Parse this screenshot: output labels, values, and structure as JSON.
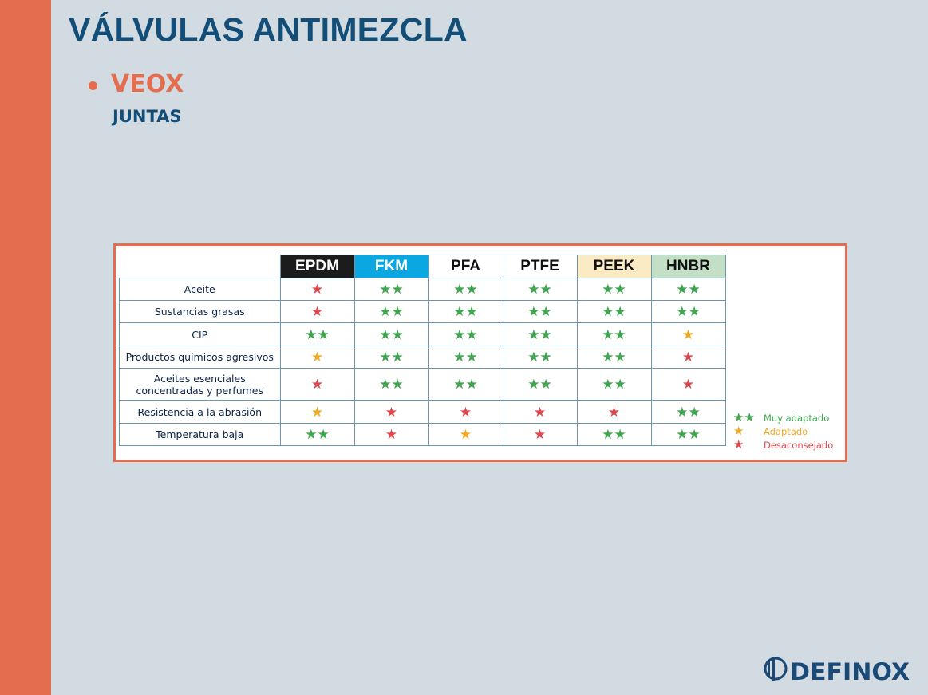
{
  "slide": {
    "title": "VÁLVULAS ANTIMEZCLA",
    "bullet": "VEOX",
    "subheading": "JUNTAS"
  },
  "table": {
    "materials": [
      "EPDM",
      "FKM",
      "PFA",
      "PTFE",
      "PEEK",
      "HNBR"
    ],
    "rows": [
      {
        "label": "Aceite",
        "ratings": [
          "red",
          "green",
          "green",
          "green",
          "green",
          "green"
        ]
      },
      {
        "label": "Sustancias grasas",
        "ratings": [
          "red",
          "green",
          "green",
          "green",
          "green",
          "green"
        ]
      },
      {
        "label": "CIP",
        "ratings": [
          "green",
          "green",
          "green",
          "green",
          "green",
          "orange"
        ]
      },
      {
        "label": "Productos químicos agresivos",
        "ratings": [
          "orange",
          "green",
          "green",
          "green",
          "green",
          "red"
        ]
      },
      {
        "label": "Aceites esenciales concentradas y perfumes",
        "ratings": [
          "red",
          "green",
          "green",
          "green",
          "green",
          "red"
        ]
      },
      {
        "label": "Resistencia a la abrasión",
        "ratings": [
          "orange",
          "red",
          "red",
          "red",
          "red",
          "green"
        ]
      },
      {
        "label": "Temperatura baja",
        "ratings": [
          "green",
          "red",
          "orange",
          "red",
          "green",
          "green"
        ]
      }
    ]
  },
  "legend": {
    "green": "Muy adaptado",
    "orange": "Adaptado",
    "red": "Desaconsejado"
  },
  "rating_symbols": {
    "green": "★★",
    "orange": "★",
    "red": "★"
  },
  "colors": {
    "accent": "#e46c4f",
    "navy": "#124e78",
    "green_star": "#3fa54f",
    "orange_star": "#f2a81d",
    "red_star": "#e0474a"
  },
  "logo": {
    "text": "DEFINOX"
  }
}
